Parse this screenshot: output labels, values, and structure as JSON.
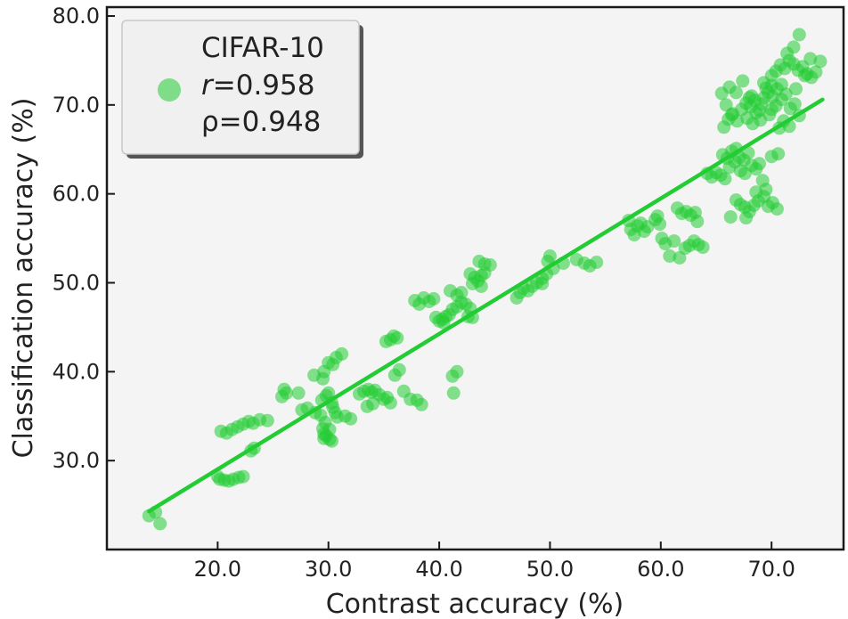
{
  "chart_data": {
    "type": "scatter",
    "title": "",
    "xlabel": "Contrast accuracy (%)",
    "ylabel": "Classification accuracy (%)",
    "xlim": [
      10.0,
      76.5
    ],
    "ylim": [
      20.0,
      81.0
    ],
    "x_ticks": [
      "20.0",
      "30.0",
      "40.0",
      "50.0",
      "60.0",
      "70.0"
    ],
    "y_ticks": [
      "30.0",
      "40.0",
      "50.0",
      "60.0",
      "70.0",
      "80.0"
    ],
    "grid": false,
    "legend_position": "top-left",
    "colors": {
      "points": "#22cc33",
      "line": "#22cc33",
      "plot_background": "#f4f4f4",
      "legend_background": "#f0f0f0"
    },
    "series": [
      {
        "name": "CIFAR-10",
        "stats": {
          "r_label": "r",
          "r_value": "=0.958",
          "rho_text": "ρ=0.948"
        },
        "points": [
          [
            13.8,
            23.8
          ],
          [
            14.4,
            24.2
          ],
          [
            14.8,
            22.9
          ],
          [
            20.0,
            28.2
          ],
          [
            20.2,
            27.9
          ],
          [
            20.6,
            27.8
          ],
          [
            21.0,
            27.7
          ],
          [
            21.4,
            27.9
          ],
          [
            21.9,
            28.1
          ],
          [
            22.3,
            28.2
          ],
          [
            20.3,
            33.3
          ],
          [
            20.8,
            33.1
          ],
          [
            21.3,
            33.5
          ],
          [
            21.8,
            33.8
          ],
          [
            22.3,
            34.1
          ],
          [
            22.8,
            34.4
          ],
          [
            23.2,
            34.2
          ],
          [
            23.8,
            34.6
          ],
          [
            24.5,
            34.5
          ],
          [
            23.0,
            31.1
          ],
          [
            23.3,
            31.4
          ],
          [
            25.8,
            37.2
          ],
          [
            26.2,
            37.6
          ],
          [
            26.0,
            38.0
          ],
          [
            27.3,
            37.6
          ],
          [
            27.6,
            35.7
          ],
          [
            28.1,
            35.9
          ],
          [
            28.8,
            35.4
          ],
          [
            28.7,
            39.6
          ],
          [
            29.4,
            36.8
          ],
          [
            29.5,
            39.2
          ],
          [
            29.6,
            40.0
          ],
          [
            29.8,
            37.3
          ],
          [
            30.0,
            37.6
          ],
          [
            30.3,
            36.5
          ],
          [
            30.4,
            36.0
          ],
          [
            30.6,
            35.4
          ],
          [
            30.8,
            34.9
          ],
          [
            29.3,
            35.1
          ],
          [
            29.7,
            34.3
          ],
          [
            29.5,
            33.6
          ],
          [
            29.6,
            33.0
          ],
          [
            29.8,
            32.8
          ],
          [
            30.1,
            32.4
          ],
          [
            30.3,
            32.2
          ],
          [
            29.6,
            32.5
          ],
          [
            30.1,
            33.5
          ],
          [
            30.0,
            41.0
          ],
          [
            30.4,
            40.8
          ],
          [
            30.7,
            41.6
          ],
          [
            31.2,
            42.0
          ],
          [
            31.5,
            35.0
          ],
          [
            32.0,
            34.7
          ],
          [
            32.8,
            37.5
          ],
          [
            33.2,
            37.8
          ],
          [
            33.6,
            38.0
          ],
          [
            33.9,
            37.7
          ],
          [
            34.2,
            37.9
          ],
          [
            34.6,
            37.4
          ],
          [
            35.0,
            36.9
          ],
          [
            35.3,
            37.1
          ],
          [
            35.6,
            36.5
          ],
          [
            33.5,
            36.1
          ],
          [
            34.0,
            36.4
          ],
          [
            35.2,
            43.4
          ],
          [
            35.6,
            43.6
          ],
          [
            35.9,
            44.0
          ],
          [
            36.2,
            43.8
          ],
          [
            36.4,
            40.2
          ],
          [
            36.0,
            39.6
          ],
          [
            36.8,
            37.8
          ],
          [
            37.4,
            36.9
          ],
          [
            38.0,
            36.8
          ],
          [
            38.4,
            36.3
          ],
          [
            37.8,
            48.0
          ],
          [
            38.2,
            47.6
          ],
          [
            38.6,
            48.3
          ],
          [
            39.1,
            47.9
          ],
          [
            39.5,
            48.2
          ],
          [
            39.7,
            46.1
          ],
          [
            40.0,
            45.7
          ],
          [
            40.3,
            45.9
          ],
          [
            40.6,
            46.2
          ],
          [
            40.9,
            46.4
          ],
          [
            41.2,
            47.0
          ],
          [
            41.6,
            47.3
          ],
          [
            42.0,
            47.8
          ],
          [
            42.4,
            47.6
          ],
          [
            42.8,
            47.1
          ],
          [
            40.4,
            45.5
          ],
          [
            41.0,
            49.1
          ],
          [
            41.6,
            48.6
          ],
          [
            42.0,
            48.9
          ],
          [
            42.6,
            46.2
          ],
          [
            43.0,
            46.1
          ],
          [
            41.2,
            39.5
          ],
          [
            41.6,
            40.0
          ],
          [
            41.3,
            37.6
          ],
          [
            42.8,
            51.0
          ],
          [
            43.2,
            50.6
          ],
          [
            43.5,
            50.2
          ],
          [
            43.8,
            50.8
          ],
          [
            44.1,
            51.1
          ],
          [
            43.6,
            52.4
          ],
          [
            44.1,
            52.1
          ],
          [
            44.6,
            52.0
          ],
          [
            43.0,
            49.9
          ],
          [
            43.8,
            49.6
          ],
          [
            47.0,
            48.3
          ],
          [
            47.3,
            48.9
          ],
          [
            47.6,
            49.4
          ],
          [
            48.0,
            49.1
          ],
          [
            48.4,
            49.6
          ],
          [
            48.8,
            50.0
          ],
          [
            49.3,
            50.5
          ],
          [
            49.7,
            51.0
          ],
          [
            49.3,
            49.9
          ],
          [
            49.8,
            52.4
          ],
          [
            50.0,
            53.0
          ],
          [
            50.3,
            51.6
          ],
          [
            51.2,
            52.2
          ],
          [
            52.4,
            52.6
          ],
          [
            53.1,
            52.2
          ],
          [
            53.6,
            51.9
          ],
          [
            54.2,
            52.3
          ],
          [
            57.1,
            57.0
          ],
          [
            57.3,
            56.0
          ],
          [
            57.6,
            55.4
          ],
          [
            57.9,
            56.4
          ],
          [
            58.2,
            56.7
          ],
          [
            58.5,
            55.8
          ],
          [
            58.8,
            56.3
          ],
          [
            59.5,
            57.1
          ],
          [
            59.9,
            56.6
          ],
          [
            59.7,
            57.5
          ],
          [
            60.1,
            55.0
          ],
          [
            60.4,
            54.4
          ],
          [
            60.8,
            53.0
          ],
          [
            61.2,
            54.7
          ],
          [
            61.5,
            58.4
          ],
          [
            61.9,
            57.8
          ],
          [
            62.3,
            58.0
          ],
          [
            62.7,
            57.6
          ],
          [
            63.1,
            57.9
          ],
          [
            63.3,
            56.9
          ],
          [
            61.7,
            52.8
          ],
          [
            62.2,
            53.9
          ],
          [
            62.6,
            54.2
          ],
          [
            63.0,
            54.7
          ],
          [
            63.4,
            54.3
          ],
          [
            63.8,
            54.0
          ],
          [
            64.2,
            62.3
          ],
          [
            64.6,
            61.9
          ],
          [
            65.0,
            62.4
          ],
          [
            65.4,
            62.1
          ],
          [
            65.8,
            61.7
          ],
          [
            66.2,
            63.0
          ],
          [
            66.7,
            63.6
          ],
          [
            67.1,
            64.1
          ],
          [
            67.5,
            63.8
          ],
          [
            67.9,
            64.6
          ],
          [
            68.2,
            63.2
          ],
          [
            68.6,
            62.8
          ],
          [
            68.9,
            63.4
          ],
          [
            65.6,
            64.4
          ],
          [
            66.0,
            64.0
          ],
          [
            66.4,
            64.8
          ],
          [
            66.8,
            65.1
          ],
          [
            67.2,
            62.6
          ],
          [
            67.6,
            62.3
          ],
          [
            66.8,
            59.3
          ],
          [
            67.2,
            58.8
          ],
          [
            67.6,
            58.5
          ],
          [
            68.0,
            58.0
          ],
          [
            68.4,
            58.7
          ],
          [
            68.8,
            59.2
          ],
          [
            69.3,
            59.7
          ],
          [
            69.7,
            58.6
          ],
          [
            70.1,
            59.0
          ],
          [
            70.5,
            58.3
          ],
          [
            70.6,
            64.5
          ],
          [
            70.0,
            64.2
          ],
          [
            69.5,
            60.5
          ],
          [
            68.6,
            60.2
          ],
          [
            67.7,
            57.3
          ],
          [
            66.3,
            57.4
          ],
          [
            69.2,
            61.5
          ],
          [
            65.7,
            67.5
          ],
          [
            66.1,
            68.4
          ],
          [
            66.5,
            69.0
          ],
          [
            66.9,
            68.2
          ],
          [
            67.3,
            69.5
          ],
          [
            67.7,
            70.2
          ],
          [
            68.1,
            69.8
          ],
          [
            68.5,
            70.5
          ],
          [
            68.9,
            69.4
          ],
          [
            69.3,
            70.8
          ],
          [
            69.7,
            71.4
          ],
          [
            70.1,
            70.9
          ],
          [
            70.5,
            71.8
          ],
          [
            70.9,
            70.6
          ],
          [
            71.3,
            71.2
          ],
          [
            71.7,
            69.6
          ],
          [
            72.1,
            70.1
          ],
          [
            72.5,
            68.8
          ],
          [
            69.0,
            68.3
          ],
          [
            68.6,
            69.1
          ],
          [
            67.8,
            68.5
          ],
          [
            68.3,
            67.9
          ],
          [
            69.1,
            70.1
          ],
          [
            70.0,
            69.5
          ],
          [
            71.1,
            68.2
          ],
          [
            70.4,
            69.9
          ],
          [
            69.8,
            68.9
          ],
          [
            68.2,
            71.0
          ],
          [
            65.5,
            71.3
          ],
          [
            66.2,
            72.0
          ],
          [
            66.8,
            71.4
          ],
          [
            67.4,
            72.7
          ],
          [
            68.0,
            70.8
          ],
          [
            65.9,
            70.0
          ],
          [
            66.4,
            68.9
          ],
          [
            69.5,
            71.9
          ],
          [
            70.0,
            72.2
          ],
          [
            69.3,
            72.5
          ],
          [
            70.9,
            72.3
          ],
          [
            72.2,
            71.8
          ],
          [
            71.6,
            67.6
          ],
          [
            70.7,
            67.4
          ],
          [
            70.0,
            73.3
          ],
          [
            70.4,
            73.8
          ],
          [
            70.8,
            74.5
          ],
          [
            71.2,
            74.1
          ],
          [
            71.6,
            75.0
          ],
          [
            72.0,
            74.6
          ],
          [
            72.4,
            73.9
          ],
          [
            72.8,
            74.3
          ],
          [
            73.2,
            73.5
          ],
          [
            73.6,
            73.1
          ],
          [
            74.0,
            73.7
          ],
          [
            74.4,
            74.9
          ],
          [
            71.4,
            75.8
          ],
          [
            72.0,
            76.5
          ],
          [
            72.5,
            77.9
          ],
          [
            73.5,
            75.2
          ],
          [
            73.0,
            73.3
          ]
        ],
        "fit": {
          "x0": 13.8,
          "y0": 24.3,
          "x1": 74.6,
          "y1": 70.6
        }
      }
    ]
  }
}
